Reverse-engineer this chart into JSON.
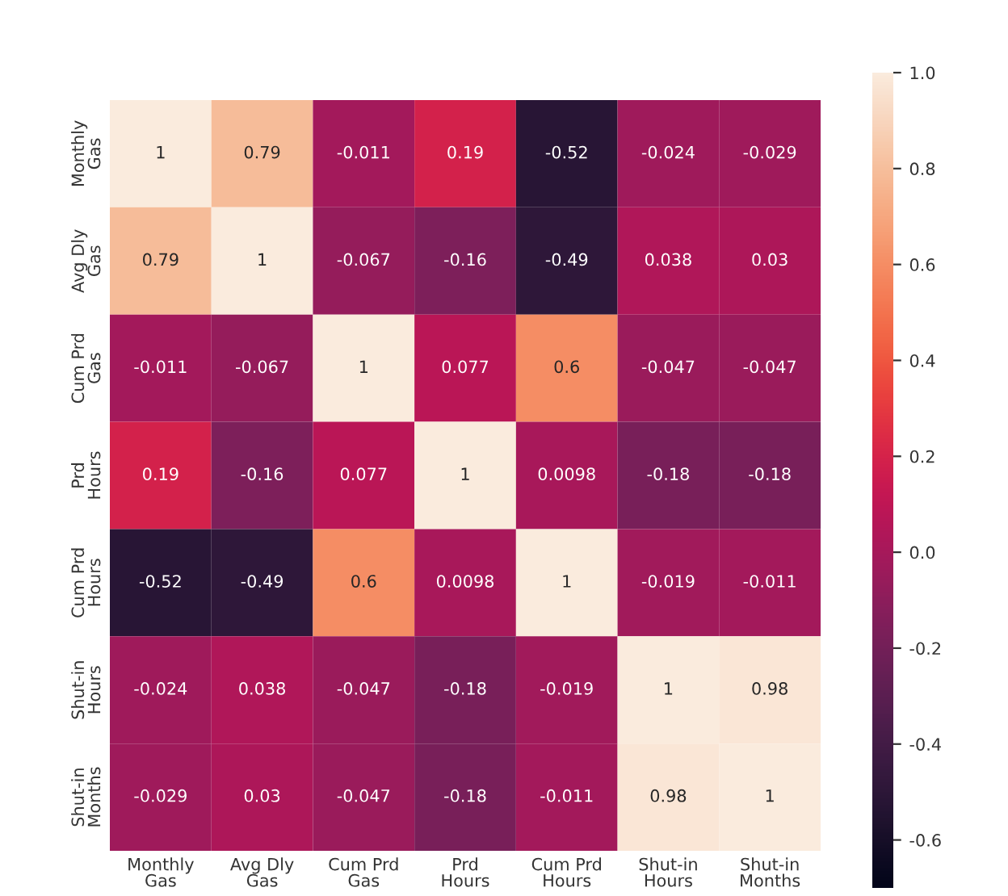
{
  "chart_data": {
    "type": "heatmap",
    "categories": [
      "Monthly\nGas",
      "Avg Dly\nGas",
      "Cum Prd\nGas",
      "Prd\nHours",
      "Cum Prd\nHours",
      "Shut-in\nHours",
      "Shut-in\nMonths"
    ],
    "y_categories": [
      "Monthly\nGas",
      "Avg Dly\nGas",
      "Cum Prd\nGas",
      "Prd\nHours",
      "Cum Prd\nHours",
      "Shut-in\nHours",
      "Shut-in\nMonths"
    ],
    "cells": [
      [
        1,
        0.79,
        -0.011,
        0.19,
        -0.52,
        -0.024,
        -0.029
      ],
      [
        0.79,
        1,
        -0.067,
        -0.16,
        -0.49,
        0.038,
        0.03
      ],
      [
        -0.011,
        -0.067,
        1,
        0.077,
        0.6,
        -0.047,
        -0.047
      ],
      [
        0.19,
        -0.16,
        0.077,
        1,
        0.0098,
        -0.18,
        -0.18
      ],
      [
        -0.52,
        -0.49,
        0.6,
        0.0098,
        1,
        -0.019,
        -0.011
      ],
      [
        -0.024,
        0.038,
        -0.047,
        -0.18,
        -0.019,
        1,
        0.98
      ],
      [
        -0.029,
        0.03,
        -0.047,
        -0.18,
        -0.011,
        0.98,
        1
      ]
    ],
    "clim": [
      -0.7,
      1.0
    ],
    "cticks": [
      -0.6,
      -0.4,
      -0.2,
      {
        "value": 0,
        "label": "0.0"
      },
      0.2,
      0.4,
      0.6,
      0.8,
      {
        "value": 1,
        "label": "1.0"
      }
    ],
    "data_labels": true
  }
}
